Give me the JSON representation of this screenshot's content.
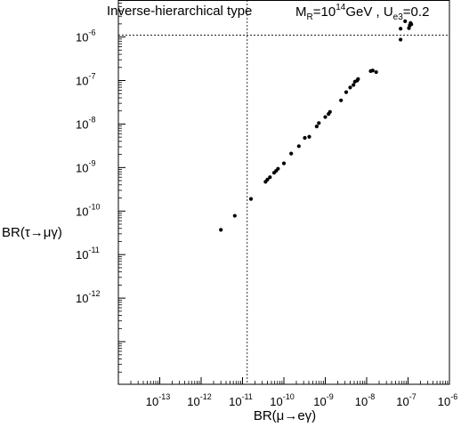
{
  "chart_data": {
    "type": "scatter",
    "title": "Inverse-hierarchical type",
    "annotation": {
      "mr_label": "M",
      "mr_sub": "R",
      "mr_value": "=10",
      "mr_exp": "14",
      "mr_unit": "GeV ,",
      "u_label": " U",
      "u_sub": "e3",
      "u_value": "=0.2"
    },
    "xlabel": "BR(μ→eγ)",
    "ylabel": "BR(τ→μγ)",
    "x_log": true,
    "y_log": true,
    "xlim_exp": [
      -14,
      -6
    ],
    "ylim_exp": [
      -13.98,
      -5.15
    ],
    "x_tick_exps": [
      -13,
      -12,
      -11,
      -10,
      -9,
      -8,
      -7,
      -6
    ],
    "y_tick_exps": [
      -12,
      -11,
      -10,
      -9,
      -8,
      -7,
      -6
    ],
    "tick_base": "10",
    "x_tick_labels": [
      "-13",
      "-12",
      "-11",
      "-10",
      "-9",
      "-8",
      "-7",
      "-6"
    ],
    "y_tick_labels": [
      "-12",
      "-11",
      "-10",
      "-9",
      "-8",
      "-7",
      "-6"
    ],
    "reference_lines": {
      "x": 1.3e-11,
      "y": 1.1e-06
    },
    "points": [
      {
        "x": 3e-12,
        "y": 3.7e-11
      },
      {
        "x": 6.5e-12,
        "y": 7.8e-11
      },
      {
        "x": 1.6e-11,
        "y": 1.9e-10
      },
      {
        "x": 3.6e-11,
        "y": 4.7e-10
      },
      {
        "x": 4e-11,
        "y": 5.3e-10
      },
      {
        "x": 4.6e-11,
        "y": 6e-10
      },
      {
        "x": 5.8e-11,
        "y": 7.6e-10
      },
      {
        "x": 6.5e-11,
        "y": 8.4e-10
      },
      {
        "x": 7.2e-11,
        "y": 9.4e-10
      },
      {
        "x": 1e-10,
        "y": 1.25e-09
      },
      {
        "x": 1.5e-10,
        "y": 2.1e-09
      },
      {
        "x": 2.3e-10,
        "y": 3.1e-09
      },
      {
        "x": 3.2e-10,
        "y": 4.8e-09
      },
      {
        "x": 4.1e-10,
        "y": 5.1e-09
      },
      {
        "x": 6.2e-10,
        "y": 8.8e-09
      },
      {
        "x": 7e-10,
        "y": 1.05e-08
      },
      {
        "x": 1e-09,
        "y": 1.45e-08
      },
      {
        "x": 1.2e-09,
        "y": 1.7e-08
      },
      {
        "x": 1.3e-09,
        "y": 1.9e-08
      },
      {
        "x": 2.4e-09,
        "y": 3.5e-08
      },
      {
        "x": 3.2e-09,
        "y": 5.4e-08
      },
      {
        "x": 4e-09,
        "y": 6.9e-08
      },
      {
        "x": 4.8e-09,
        "y": 7.9e-08
      },
      {
        "x": 5.2e-09,
        "y": 9.4e-08
      },
      {
        "x": 5.9e-09,
        "y": 1e-07
      },
      {
        "x": 6.2e-09,
        "y": 1.08e-07
      },
      {
        "x": 1.25e-08,
        "y": 1.65e-07
      },
      {
        "x": 1.4e-08,
        "y": 1.7e-07
      },
      {
        "x": 1.7e-08,
        "y": 1.56e-07
      },
      {
        "x": 6.6e-08,
        "y": 8.7e-07
      },
      {
        "x": 6.6e-08,
        "y": 1.55e-06
      },
      {
        "x": 8.5e-08,
        "y": 2.3e-06
      },
      {
        "x": 1.05e-07,
        "y": 1.6e-06
      },
      {
        "x": 1.1e-07,
        "y": 1.85e-06
      },
      {
        "x": 1.15e-07,
        "y": 2.1e-06
      },
      {
        "x": 1.2e-07,
        "y": 1.95e-06
      }
    ],
    "grid": false,
    "legend": "none"
  }
}
